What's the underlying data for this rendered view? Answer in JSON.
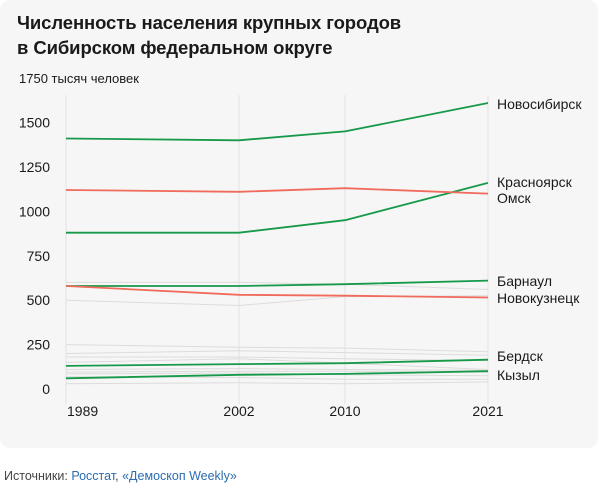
{
  "title_line1": "Численность населения крупных городов",
  "title_line2": "в Сибирском федеральном округе",
  "sources": {
    "label": "Источники:",
    "link1": "Росстат",
    "separator": ", ",
    "link2": "«Демоскоп Weekly»"
  },
  "colors": {
    "green": "#17994a",
    "red": "#f06b5c",
    "gray": "#dcdcdc",
    "grid": "#e2e2e2"
  },
  "chart_data": {
    "type": "line",
    "title": "Численность населения крупных городов в Сибирском федеральном округе",
    "ylabel": "тысяч человек",
    "y_unit_label": "1750 тысяч человек",
    "x": [
      1989,
      2002,
      2010,
      2021
    ],
    "x_ticks": [
      "1989",
      "2002",
      "2010",
      "2021"
    ],
    "y_ticks": [
      0,
      250,
      500,
      750,
      1000,
      1250,
      1500,
      1750
    ],
    "ylim": [
      0,
      1750
    ],
    "grid": true,
    "legend": "labels at line ends",
    "series": [
      {
        "name": "Новосибирск",
        "color": "green",
        "values": [
          1410,
          1400,
          1450,
          1610
        ]
      },
      {
        "name": "Красноярск",
        "color": "green",
        "values": [
          880,
          880,
          950,
          1160
        ]
      },
      {
        "name": "Омск",
        "color": "red",
        "values": [
          1120,
          1110,
          1130,
          1100
        ]
      },
      {
        "name": "Барнаул",
        "color": "green",
        "values": [
          580,
          580,
          590,
          610
        ]
      },
      {
        "name": "Новокузнецк",
        "color": "red",
        "values": [
          580,
          530,
          525,
          515
        ]
      },
      {
        "name": "Бердск",
        "color": "green",
        "values": [
          130,
          140,
          145,
          165
        ]
      },
      {
        "name": "Кызыл",
        "color": "green",
        "values": [
          60,
          80,
          85,
          100
        ]
      },
      {
        "color": "gray",
        "values": [
          600,
          600,
          590,
          560
        ]
      },
      {
        "color": "gray",
        "values": [
          500,
          470,
          520,
          525
        ]
      },
      {
        "color": "gray",
        "values": [
          250,
          235,
          230,
          210
        ]
      },
      {
        "color": "gray",
        "values": [
          200,
          215,
          205,
          190
        ]
      },
      {
        "color": "gray",
        "values": [
          180,
          180,
          170,
          160
        ]
      },
      {
        "color": "gray",
        "values": [
          150,
          170,
          145,
          110
        ]
      },
      {
        "color": "gray",
        "values": [
          110,
          115,
          110,
          105
        ]
      },
      {
        "color": "gray",
        "values": [
          95,
          100,
          100,
          95
        ]
      },
      {
        "color": "gray",
        "values": [
          85,
          90,
          80,
          75
        ]
      },
      {
        "color": "gray",
        "values": [
          70,
          65,
          55,
          55
        ]
      },
      {
        "color": "gray",
        "values": [
          30,
          35,
          30,
          40
        ]
      }
    ]
  }
}
